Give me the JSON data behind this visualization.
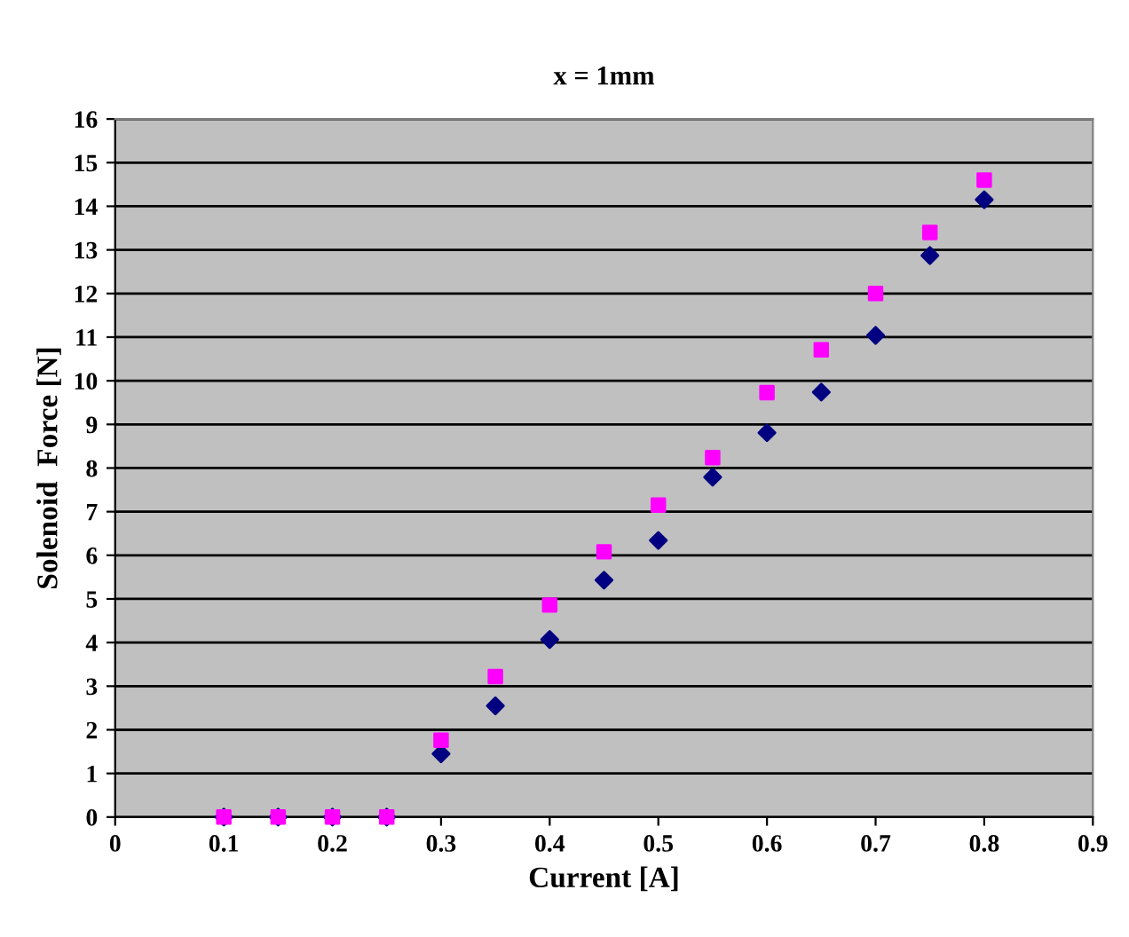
{
  "chart_data": {
    "type": "scatter",
    "title": "x = 1mm",
    "xlabel": "Current [A]",
    "ylabel": "Solenoid  Force [N]",
    "x": [
      0.1,
      0.15,
      0.2,
      0.25,
      0.3,
      0.35,
      0.4,
      0.45,
      0.5,
      0.55,
      0.6,
      0.65,
      0.7,
      0.75,
      0.8
    ],
    "series": [
      {
        "color": "#000080",
        "marker": "diamond",
        "values": [
          0,
          0,
          0,
          0,
          1.45,
          2.55,
          4.07,
          5.43,
          6.34,
          7.79,
          8.81,
          9.74,
          11.04,
          12.87,
          14.15
        ]
      },
      {
        "color": "#ff00ff",
        "marker": "square",
        "values": [
          0,
          0,
          0,
          0,
          1.76,
          3.22,
          4.86,
          6.08,
          7.15,
          8.24,
          9.73,
          10.71,
          12.0,
          13.4,
          14.6
        ]
      }
    ],
    "xlim": [
      0,
      0.9
    ],
    "xticks": [
      0,
      0.1,
      0.2,
      0.3,
      0.4,
      0.5,
      0.6,
      0.7,
      0.8,
      0.9
    ],
    "ylim": [
      0,
      16
    ],
    "yticks": [
      0,
      1,
      2,
      3,
      4,
      5,
      6,
      7,
      8,
      9,
      10,
      11,
      12,
      13,
      14,
      15,
      16
    ],
    "grid": "y",
    "legend": false
  }
}
